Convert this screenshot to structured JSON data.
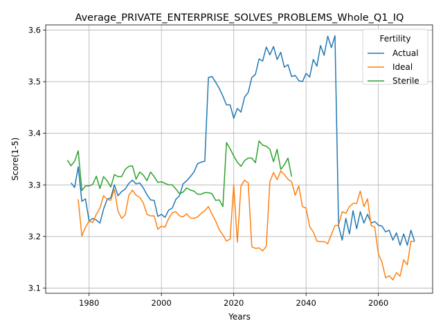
{
  "chart_data": {
    "type": "line",
    "title": "Average_PRIVATE_ENTERPRISE_SOLVES_PROBLEMS_Whole_Q1_IQ",
    "xlabel": "Years",
    "ylabel": "Score(1-5)",
    "xlim": [
      1968,
      2075
    ],
    "ylim": [
      3.09,
      3.61
    ],
    "xticks": [
      1980,
      2000,
      2020,
      2040,
      2060
    ],
    "yticks": [
      3.1,
      3.2,
      3.3,
      3.4,
      3.5,
      3.6
    ],
    "grid": true,
    "legend": {
      "title": "Fertility",
      "placement": "top-right"
    },
    "series": [
      {
        "name": "Actual",
        "color": "#1f77b4",
        "x": [
          1975,
          1976,
          1977,
          1978,
          1979,
          1980,
          1981,
          1982,
          1983,
          1984,
          1985,
          1986,
          1987,
          1988,
          1989,
          1990,
          1991,
          1992,
          1993,
          1994,
          1995,
          1996,
          1997,
          1998,
          1999,
          2000,
          2001,
          2002,
          2003,
          2004,
          2005,
          2006,
          2007,
          2008,
          2009,
          2010,
          2011,
          2012,
          2013,
          2014,
          2015,
          2016,
          2017,
          2018,
          2019,
          2020,
          2021,
          2022,
          2023,
          2024,
          2025,
          2026,
          2027,
          2028,
          2029,
          2030,
          2031,
          2032,
          2033,
          2034,
          2035,
          2036,
          2037,
          2038,
          2039,
          2040,
          2041,
          2042,
          2043,
          2044,
          2045,
          2046,
          2047,
          2048,
          2049,
          2050,
          2051,
          2052,
          2053,
          2054,
          2055,
          2056,
          2057,
          2058,
          2059,
          2060,
          2061,
          2062,
          2063,
          2064,
          2065,
          2066,
          2067,
          2068,
          2069,
          2070
        ],
        "y": [
          3.304,
          3.295,
          3.335,
          3.268,
          3.273,
          3.23,
          3.235,
          3.232,
          3.226,
          3.253,
          3.272,
          3.275,
          3.3,
          3.279,
          3.287,
          3.292,
          3.303,
          3.309,
          3.302,
          3.304,
          3.294,
          3.281,
          3.271,
          3.27,
          3.239,
          3.243,
          3.237,
          3.251,
          3.255,
          3.272,
          3.279,
          3.302,
          3.308,
          3.316,
          3.325,
          3.341,
          3.344,
          3.346,
          3.508,
          3.51,
          3.499,
          3.487,
          3.472,
          3.455,
          3.455,
          3.429,
          3.448,
          3.441,
          3.47,
          3.479,
          3.508,
          3.514,
          3.544,
          3.54,
          3.567,
          3.552,
          3.568,
          3.543,
          3.557,
          3.528,
          3.533,
          3.51,
          3.512,
          3.502,
          3.5,
          3.516,
          3.509,
          3.543,
          3.53,
          3.57,
          3.551,
          3.588,
          3.566,
          3.589,
          3.22,
          3.193,
          3.235,
          3.205,
          3.25,
          3.215,
          3.248,
          3.226,
          3.243,
          3.226,
          3.229,
          3.222,
          3.22,
          3.209,
          3.212,
          3.193,
          3.207,
          3.183,
          3.205,
          3.183,
          3.212,
          3.191
        ]
      },
      {
        "name": "Ideal",
        "color": "#ff7f0e",
        "x": [
          1977,
          1978,
          1979,
          1980,
          1981,
          1982,
          1983,
          1984,
          1985,
          1986,
          1987,
          1988,
          1989,
          1990,
          1991,
          1992,
          1993,
          1994,
          1995,
          1996,
          1997,
          1998,
          1999,
          2000,
          2001,
          2002,
          2003,
          2004,
          2005,
          2006,
          2007,
          2008,
          2009,
          2010,
          2011,
          2012,
          2013,
          2014,
          2015,
          2016,
          2017,
          2018,
          2019,
          2020,
          2021,
          2022,
          2023,
          2024,
          2025,
          2026,
          2027,
          2028,
          2029,
          2030,
          2031,
          2032,
          2033,
          2034,
          2035,
          2036,
          2037,
          2038,
          2039,
          2040,
          2041,
          2042,
          2043,
          2044,
          2045,
          2046,
          2047,
          2048,
          2049,
          2050,
          2051,
          2052,
          2053,
          2054,
          2055,
          2056,
          2057,
          2058,
          2059,
          2060,
          2061,
          2062,
          2063,
          2064,
          2065,
          2066,
          2067,
          2068,
          2069,
          2070
        ],
        "y": [
          3.272,
          3.201,
          3.218,
          3.23,
          3.227,
          3.243,
          3.255,
          3.279,
          3.272,
          3.27,
          3.291,
          3.249,
          3.235,
          3.242,
          3.28,
          3.29,
          3.28,
          3.276,
          3.265,
          3.243,
          3.24,
          3.24,
          3.214,
          3.22,
          3.218,
          3.235,
          3.246,
          3.248,
          3.24,
          3.238,
          3.244,
          3.236,
          3.235,
          3.238,
          3.245,
          3.25,
          3.258,
          3.243,
          3.23,
          3.213,
          3.203,
          3.191,
          3.195,
          3.3,
          3.189,
          3.298,
          3.309,
          3.304,
          3.18,
          3.177,
          3.178,
          3.172,
          3.181,
          3.306,
          3.324,
          3.31,
          3.327,
          3.32,
          3.311,
          3.306,
          3.28,
          3.298,
          3.258,
          3.255,
          3.219,
          3.209,
          3.191,
          3.19,
          3.19,
          3.186,
          3.204,
          3.221,
          3.222,
          3.248,
          3.245,
          3.258,
          3.264,
          3.264,
          3.288,
          3.258,
          3.273,
          3.221,
          3.218,
          3.166,
          3.15,
          3.12,
          3.124,
          3.116,
          3.13,
          3.123,
          3.155,
          3.145,
          3.191,
          3.19
        ]
      },
      {
        "name": "Sterile",
        "color": "#2ca02c",
        "x": [
          1974,
          1975,
          1976,
          1977,
          1978,
          1979,
          1980,
          1981,
          1982,
          1983,
          1984,
          1985,
          1986,
          1987,
          1988,
          1989,
          1990,
          1991,
          1992,
          1993,
          1994,
          1995,
          1996,
          1997,
          1998,
          1999,
          2000,
          2001,
          2002,
          2003,
          2004,
          2005,
          2006,
          2007,
          2008,
          2009,
          2010,
          2011,
          2012,
          2013,
          2014,
          2015,
          2016,
          2017,
          2018,
          2019,
          2020,
          2021,
          2022,
          2023,
          2024,
          2025,
          2026,
          2027,
          2028,
          2029,
          2030,
          2031,
          2032,
          2033,
          2034,
          2035,
          2036
        ],
        "y": [
          3.348,
          3.337,
          3.346,
          3.366,
          3.289,
          3.298,
          3.298,
          3.301,
          3.317,
          3.293,
          3.316,
          3.308,
          3.296,
          3.32,
          3.316,
          3.316,
          3.33,
          3.336,
          3.337,
          3.311,
          3.325,
          3.319,
          3.308,
          3.325,
          3.316,
          3.305,
          3.306,
          3.303,
          3.3,
          3.3,
          3.292,
          3.283,
          3.286,
          3.294,
          3.29,
          3.288,
          3.282,
          3.282,
          3.285,
          3.285,
          3.283,
          3.27,
          3.271,
          3.258,
          3.382,
          3.37,
          3.356,
          3.344,
          3.336,
          3.347,
          3.352,
          3.352,
          3.343,
          3.385,
          3.377,
          3.375,
          3.369,
          3.345,
          3.369,
          3.33,
          3.339,
          3.352,
          3.316
        ]
      }
    ]
  }
}
